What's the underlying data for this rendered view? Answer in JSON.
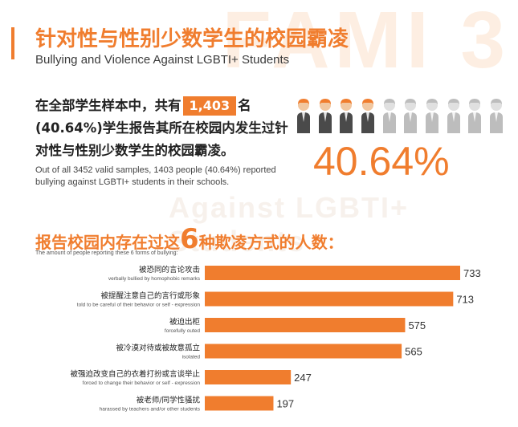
{
  "header": {
    "title_cn": "针对性与性别少数学生的校园霸凌",
    "title_en": "Bullying and Violence Against LGBTI+ Students"
  },
  "stat": {
    "text_pre": "在全部学生样本中，共有",
    "count": "1,403",
    "text_post": "名(40.64%)学生报告其所在校园内发生过针对性与性别少数学生的校园霸凌。",
    "en": "Out of all 3452 valid samples, 1403 people (40.64%) reported bullying against LGBTI+ students in their schools.",
    "percent": "40.64%",
    "fraction": 0.4064,
    "icons_total": 10,
    "icons_highlighted": 4
  },
  "chart_heading": {
    "pre": "报告校园内存在过这",
    "num": "6",
    "post": "种欺凌方式的人数：",
    "sub_en": "The amount of people reporting these 6 forms of bullying:"
  },
  "colors": {
    "accent": "#f07d2e",
    "person_gray": "#bdbdbd",
    "person_skin": "#f1c7a0"
  },
  "chart_data": {
    "type": "bar",
    "orientation": "horizontal",
    "categories": [
      {
        "cn": "被恐同的言论攻击",
        "en": "verbally bullied by homophobic remarks"
      },
      {
        "cn": "被提醒注意自己的言行或形象",
        "en": "told to be careful of their behavior or self - expression"
      },
      {
        "cn": "被迫出柜",
        "en": "forcefully outed"
      },
      {
        "cn": "被冷漠对待或被故意孤立",
        "en": "isolated"
      },
      {
        "cn": "被强迫改变自己的衣着打扮或言谈举止",
        "en": "forced to change their behavior or self - expression"
      },
      {
        "cn": "被老师/同学性骚扰",
        "en": "harassed by teachers and/or other students"
      }
    ],
    "values": [
      733,
      713,
      575,
      565,
      247,
      197
    ],
    "xlim": [
      0,
      733
    ],
    "bar_color": "#f07d2e"
  }
}
